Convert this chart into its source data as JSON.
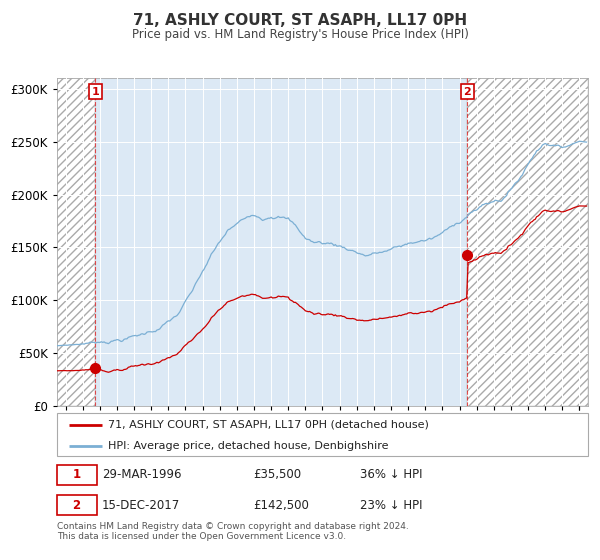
{
  "title": "71, ASHLY COURT, ST ASAPH, LL17 0PH",
  "subtitle": "Price paid vs. HM Land Registry's House Price Index (HPI)",
  "legend_line1": "71, ASHLY COURT, ST ASAPH, LL17 0PH (detached house)",
  "legend_line2": "HPI: Average price, detached house, Denbighshire",
  "sale1_date": "29-MAR-1996",
  "sale1_price": 35500,
  "sale1_label": "36% ↓ HPI",
  "sale2_date": "15-DEC-2017",
  "sale2_price": 142500,
  "sale2_label": "23% ↓ HPI",
  "footer1": "Contains HM Land Registry data © Crown copyright and database right 2024.",
  "footer2": "This data is licensed under the Open Government Licence v3.0.",
  "hpi_color": "#7bafd4",
  "price_color": "#cc0000",
  "plot_bg": "#dce9f5",
  "hatch_color": "#c8d8e8",
  "ylim": [
    0,
    310000
  ],
  "sale1_year": 1996.23,
  "sale2_year": 2017.96,
  "xstart": 1994.0,
  "xend": 2025.0
}
